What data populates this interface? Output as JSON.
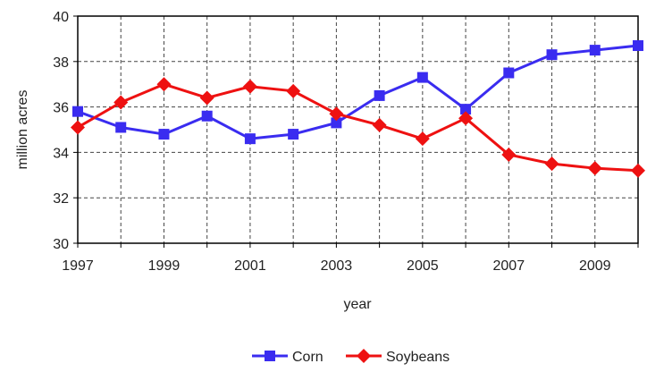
{
  "chart_data": {
    "type": "line",
    "x": [
      1997,
      1998,
      1999,
      2000,
      2001,
      2002,
      2003,
      2004,
      2005,
      2006,
      2007,
      2008,
      2009,
      2010
    ],
    "xlabel": "year",
    "ylabel": "million acres",
    "ylim": [
      30,
      40
    ],
    "xlim": [
      1997,
      2010
    ],
    "x_tick_labels": [
      "1997",
      "1999",
      "2001",
      "2003",
      "2005",
      "2007",
      "2009"
    ],
    "y_tick_labels": [
      "30",
      "32",
      "34",
      "36",
      "38",
      "40"
    ],
    "grid": true,
    "legend_position": "bottom-center",
    "series": [
      {
        "name": "Corn",
        "color": "#3a2cf0",
        "marker": "square",
        "values": [
          35.8,
          35.1,
          34.8,
          35.6,
          34.6,
          34.8,
          35.3,
          36.5,
          37.3,
          35.9,
          37.5,
          38.3,
          38.5,
          38.7
        ]
      },
      {
        "name": "Soybeans",
        "color": "#ee1111",
        "marker": "diamond",
        "values": [
          35.1,
          36.2,
          37.0,
          36.4,
          36.9,
          36.7,
          35.7,
          35.2,
          34.6,
          35.5,
          33.9,
          33.5,
          33.3,
          33.2
        ]
      }
    ]
  }
}
